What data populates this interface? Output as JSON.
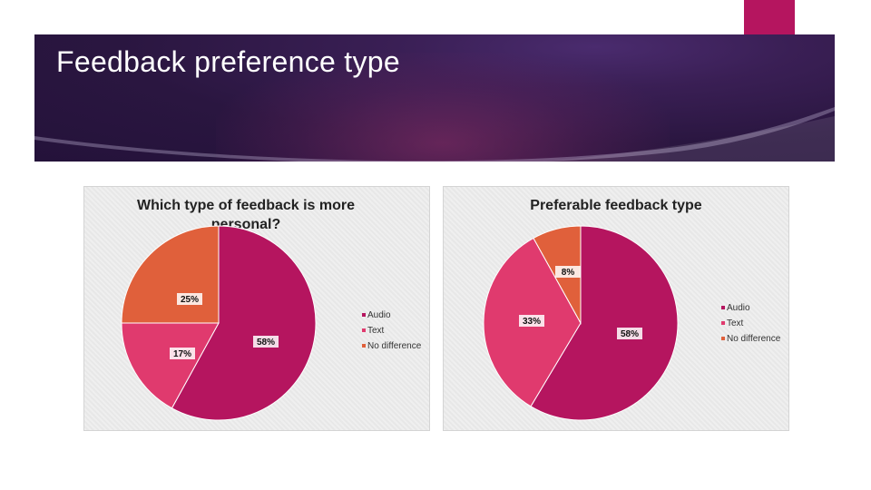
{
  "slide": {
    "title": "Feedback preference type"
  },
  "colors": {
    "audio": "#b5155f",
    "text": "#e03a6e",
    "no_difference": "#e0603b",
    "banner": "#2a1640",
    "accent": "#b5155f"
  },
  "chart_data": [
    {
      "type": "pie",
      "title": "Which type of feedback is more personal?",
      "categories": [
        "Audio",
        "Text",
        "No difference"
      ],
      "values": [
        58,
        17,
        25
      ],
      "labels": [
        "58%",
        "17%",
        "25%"
      ],
      "legend": "right"
    },
    {
      "type": "pie",
      "title": "Preferable feedback type",
      "categories": [
        "Audio",
        "Text",
        "No difference"
      ],
      "values": [
        58,
        33,
        8
      ],
      "labels": [
        "58%",
        "33%",
        "8%"
      ],
      "legend": "right"
    }
  ]
}
